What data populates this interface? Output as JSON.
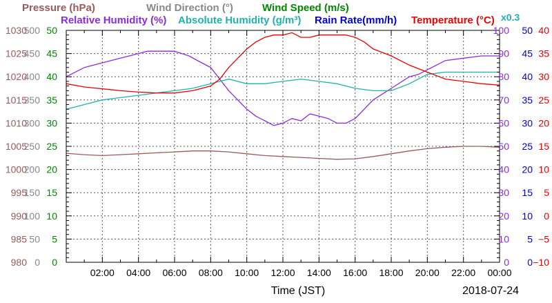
{
  "chart_data": {
    "type": "line",
    "xlabel": "Time (JST)",
    "date_label": "2018-07-24",
    "x_ticks": [
      "02:00",
      "04:00",
      "06:00",
      "08:00",
      "10:00",
      "12:00",
      "14:00",
      "16:00",
      "18:00",
      "20:00",
      "22:00",
      "00:00"
    ],
    "x_range_hours": [
      0,
      24
    ],
    "grid": true,
    "legend_titles": [
      {
        "id": "pressure",
        "text": "Pressure (hPa)",
        "color": "#9b5a5a"
      },
      {
        "id": "wind_dir",
        "text": "Wind Direction (°)",
        "color": "#888888"
      },
      {
        "id": "wind_speed",
        "text": "Wind Speed (m/s)",
        "color": "#008800"
      },
      {
        "id": "rel_hum",
        "text": "Relative Humidity (%)",
        "color": "#8a2be2"
      },
      {
        "id": "abs_hum",
        "text": "Absolute Humidity (g/m³)",
        "color": "#20b2aa"
      },
      {
        "id": "rain_rate",
        "text": "Rain Rate(mm/h)",
        "color": "#0000dd"
      },
      {
        "id": "temperature",
        "text": "Temperature (°C)",
        "color": "#ee0000"
      }
    ],
    "scale_note": {
      "text": "x0.3",
      "color": "#20b2aa"
    },
    "axes": [
      {
        "id": "pressure",
        "side": "left",
        "color": "#9b5a5a",
        "ticks": [
          "980",
          "985",
          "990",
          "995",
          "1000",
          "1005",
          "1010",
          "1015",
          "1020",
          "1025",
          "1030"
        ],
        "range": [
          980,
          1030
        ]
      },
      {
        "id": "wind_dir",
        "side": "left",
        "color": "#888888",
        "ticks": [
          "0",
          "50",
          "100",
          "150",
          "200",
          "250",
          "300",
          "350",
          "400",
          "450",
          "500"
        ],
        "range": [
          0,
          500
        ]
      },
      {
        "id": "wind_speed",
        "side": "left",
        "color": "#008800",
        "ticks": [
          "0",
          "5",
          "10",
          "15",
          "20",
          "25",
          "30",
          "35",
          "40",
          "45",
          "50"
        ],
        "range": [
          0,
          50
        ]
      },
      {
        "id": "rel_hum",
        "side": "right",
        "color": "#8a2be2",
        "ticks": [
          "0",
          "10",
          "20",
          "30",
          "40",
          "50",
          "60",
          "70",
          "80",
          "90",
          "100"
        ],
        "range": [
          0,
          100
        ]
      },
      {
        "id": "rain_rate",
        "side": "right",
        "color": "#0000dd",
        "ticks": [
          "0",
          "5",
          "10",
          "15",
          "20",
          "25",
          "30",
          "35",
          "40",
          "45",
          "50"
        ],
        "range": [
          0,
          50
        ]
      },
      {
        "id": "temperature",
        "side": "right",
        "color": "#ee0000",
        "ticks": [
          "−10",
          "−5",
          "0",
          "5",
          "10",
          "15",
          "20",
          "25",
          "30",
          "35",
          "40"
        ],
        "range": [
          -10,
          40
        ]
      }
    ],
    "series": [
      {
        "name": "Pressure (hPa)",
        "color": "#9b5a5a",
        "axis": "pressure",
        "x": [
          0,
          1,
          2,
          3,
          4,
          5,
          6,
          7,
          8,
          9,
          10,
          11,
          12,
          13,
          14,
          15,
          16,
          17,
          18,
          19,
          20,
          21,
          22,
          23,
          24
        ],
        "y": [
          1003.5,
          1003.2,
          1003,
          1003.2,
          1003.4,
          1003.6,
          1003.8,
          1004,
          1004,
          1003.8,
          1003.4,
          1003,
          1002.8,
          1002.6,
          1002.4,
          1002.2,
          1002.3,
          1002.8,
          1003.4,
          1004,
          1004.5,
          1004.8,
          1005,
          1005,
          1004.8
        ]
      },
      {
        "name": "Relative Humidity (%)",
        "color": "#8a2be2",
        "axis": "rel_hum",
        "x": [
          0,
          1,
          2,
          3,
          4,
          4.5,
          5,
          6,
          6.8,
          7.5,
          8,
          8.5,
          9,
          9.5,
          10,
          10.5,
          11,
          11.5,
          12,
          12.5,
          13,
          13.5,
          14,
          14.5,
          15,
          15.5,
          16,
          16.5,
          17,
          18,
          19,
          19.5,
          20,
          20.5,
          21,
          22,
          23,
          24
        ],
        "y": [
          80,
          84,
          86,
          88,
          90,
          91,
          91,
          91,
          89,
          86,
          84,
          79,
          74,
          70,
          66,
          63,
          61,
          59,
          60,
          62,
          61,
          64,
          63,
          62,
          60,
          60,
          62,
          66,
          70,
          75,
          80,
          81,
          83,
          85,
          87,
          88,
          89,
          89
        ]
      },
      {
        "name": "Absolute Humidity (g/m³)",
        "color": "#20b2aa",
        "axis": "temperature",
        "x": [
          0,
          1,
          2,
          3,
          4,
          5,
          6,
          7,
          8,
          9,
          10,
          11,
          12,
          13,
          14,
          15,
          16,
          17,
          18,
          19,
          20,
          21,
          22,
          23,
          24
        ],
        "y": [
          23,
          24,
          25,
          25.5,
          26,
          26.5,
          27,
          27.5,
          28.5,
          29.5,
          28.5,
          28.5,
          29,
          29.5,
          29,
          28.5,
          27.5,
          27,
          27,
          28.5,
          30.5,
          31,
          31,
          31,
          31
        ]
      },
      {
        "name": "Temperature (°C)",
        "color": "#ee0000",
        "axis": "temperature",
        "x": [
          0,
          1,
          2,
          3,
          4,
          5,
          6,
          7,
          8,
          8.5,
          9,
          9.5,
          10,
          10.5,
          11,
          11.5,
          12,
          12.5,
          13,
          13.5,
          14,
          14.5,
          15,
          15.5,
          16,
          16.5,
          17,
          18,
          19,
          20,
          21,
          22,
          23,
          24
        ],
        "y": [
          28.5,
          27.8,
          27.4,
          27,
          26.7,
          26.5,
          26.5,
          27,
          28,
          29.5,
          32,
          34,
          36,
          37.5,
          38.5,
          39,
          39,
          39.5,
          38.5,
          38.5,
          39,
          39,
          39,
          39,
          38.5,
          37.5,
          36,
          34.5,
          32.5,
          31,
          29.5,
          29,
          28.5,
          28.2
        ]
      }
    ]
  }
}
